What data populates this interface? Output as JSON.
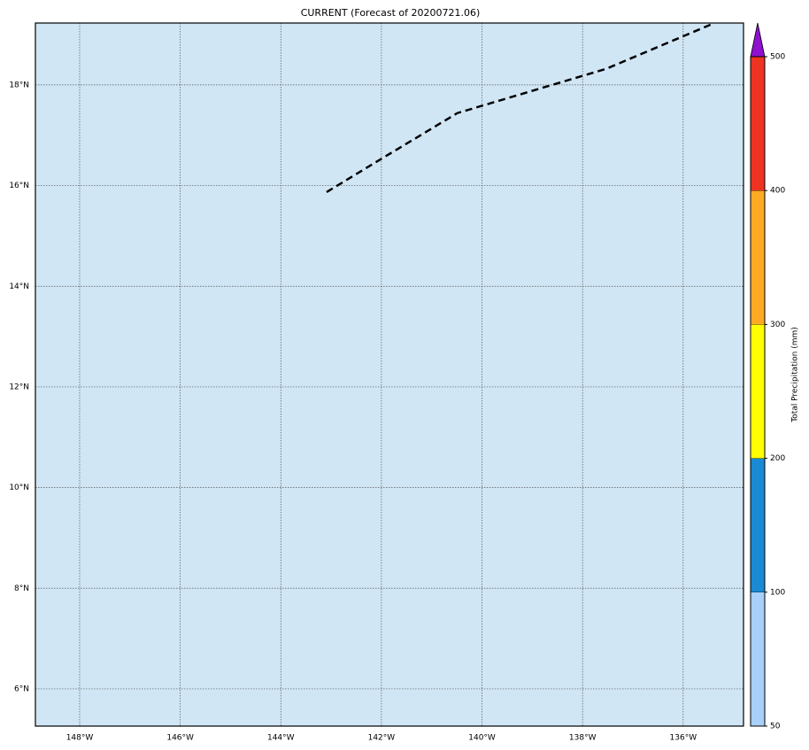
{
  "title": "CURRENT (Forecast of 20200721.06)",
  "map": {
    "xlim": [
      -148.88,
      -134.8
    ],
    "ylim": [
      5.26,
      19.23
    ],
    "xticks": [
      {
        "value": -148,
        "label": "148°W"
      },
      {
        "value": -146,
        "label": "146°W"
      },
      {
        "value": -144,
        "label": "144°W"
      },
      {
        "value": -142,
        "label": "142°W"
      },
      {
        "value": -140,
        "label": "140°W"
      },
      {
        "value": -138,
        "label": "138°W"
      },
      {
        "value": -136,
        "label": "136°W"
      }
    ],
    "yticks": [
      {
        "value": 6,
        "label": "6°N"
      },
      {
        "value": 8,
        "label": "8°N"
      },
      {
        "value": 10,
        "label": "10°N"
      },
      {
        "value": 12,
        "label": "12°N"
      },
      {
        "value": 14,
        "label": "14°N"
      },
      {
        "value": 16,
        "label": "16°N"
      },
      {
        "value": 18,
        "label": "18°N"
      }
    ],
    "ocean_color": "#d0e6f5",
    "track": {
      "lon": [
        -143.09,
        -142.02,
        -140.49,
        -137.53,
        -135.45
      ],
      "lat": [
        15.87,
        16.52,
        17.44,
        18.32,
        19.2
      ]
    }
  },
  "colorbar": {
    "label": "Total Precipitation (mm)",
    "bounds": [
      50,
      100,
      200,
      300,
      400,
      500
    ],
    "colors": [
      "#a8d0f8",
      "#1a8ad4",
      "#ffff00",
      "#ffaa22",
      "#ee3322"
    ],
    "extend_color": "#9010d0"
  }
}
